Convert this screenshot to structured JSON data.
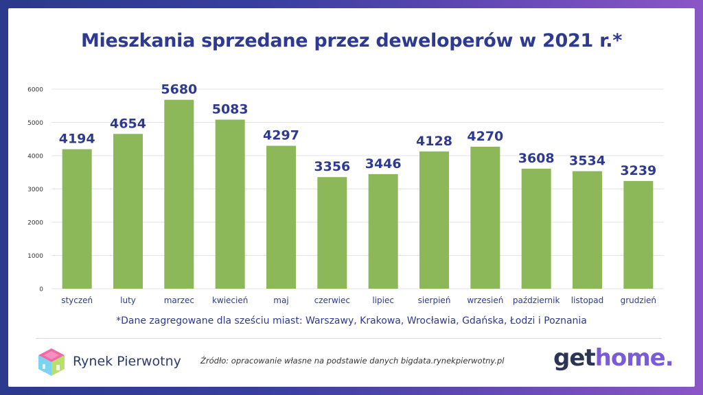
{
  "title": "Mieszkania sprzedane przez deweloperów w 2021 r.*",
  "note": "*Dane zagregowane dla sześciu miast: Warszawy, Krakowa, Wrocławia, Gdańska, Łodzi i Poznania",
  "source": "Źródło: opracowanie własne na podstawie danych bigdata.rynekpierwotny.pl",
  "brand_left": "Rynek Pierwotny",
  "brand_right_part1": "get",
  "brand_right_part2": "home.",
  "colors": {
    "bar": "#8db85a",
    "title": "#2d3a8f",
    "grid": "#e3e3ea"
  },
  "chart_data": {
    "type": "bar",
    "categories": [
      "styczeń",
      "luty",
      "marzec",
      "kwiecień",
      "maj",
      "czerwiec",
      "lipiec",
      "sierpień",
      "wrzesień",
      "październik",
      "listopad",
      "grudzień"
    ],
    "values": [
      4194,
      4654,
      5680,
      5083,
      4297,
      3356,
      3446,
      4128,
      4270,
      3608,
      3534,
      3239
    ],
    "title": "Mieszkania sprzedane przez deweloperów w 2021 r.*",
    "xlabel": "",
    "ylabel": "",
    "ylim": [
      0,
      6000
    ],
    "yticks": [
      0,
      1000,
      2000,
      3000,
      4000,
      5000,
      6000
    ],
    "grid": true,
    "legend": "none"
  }
}
